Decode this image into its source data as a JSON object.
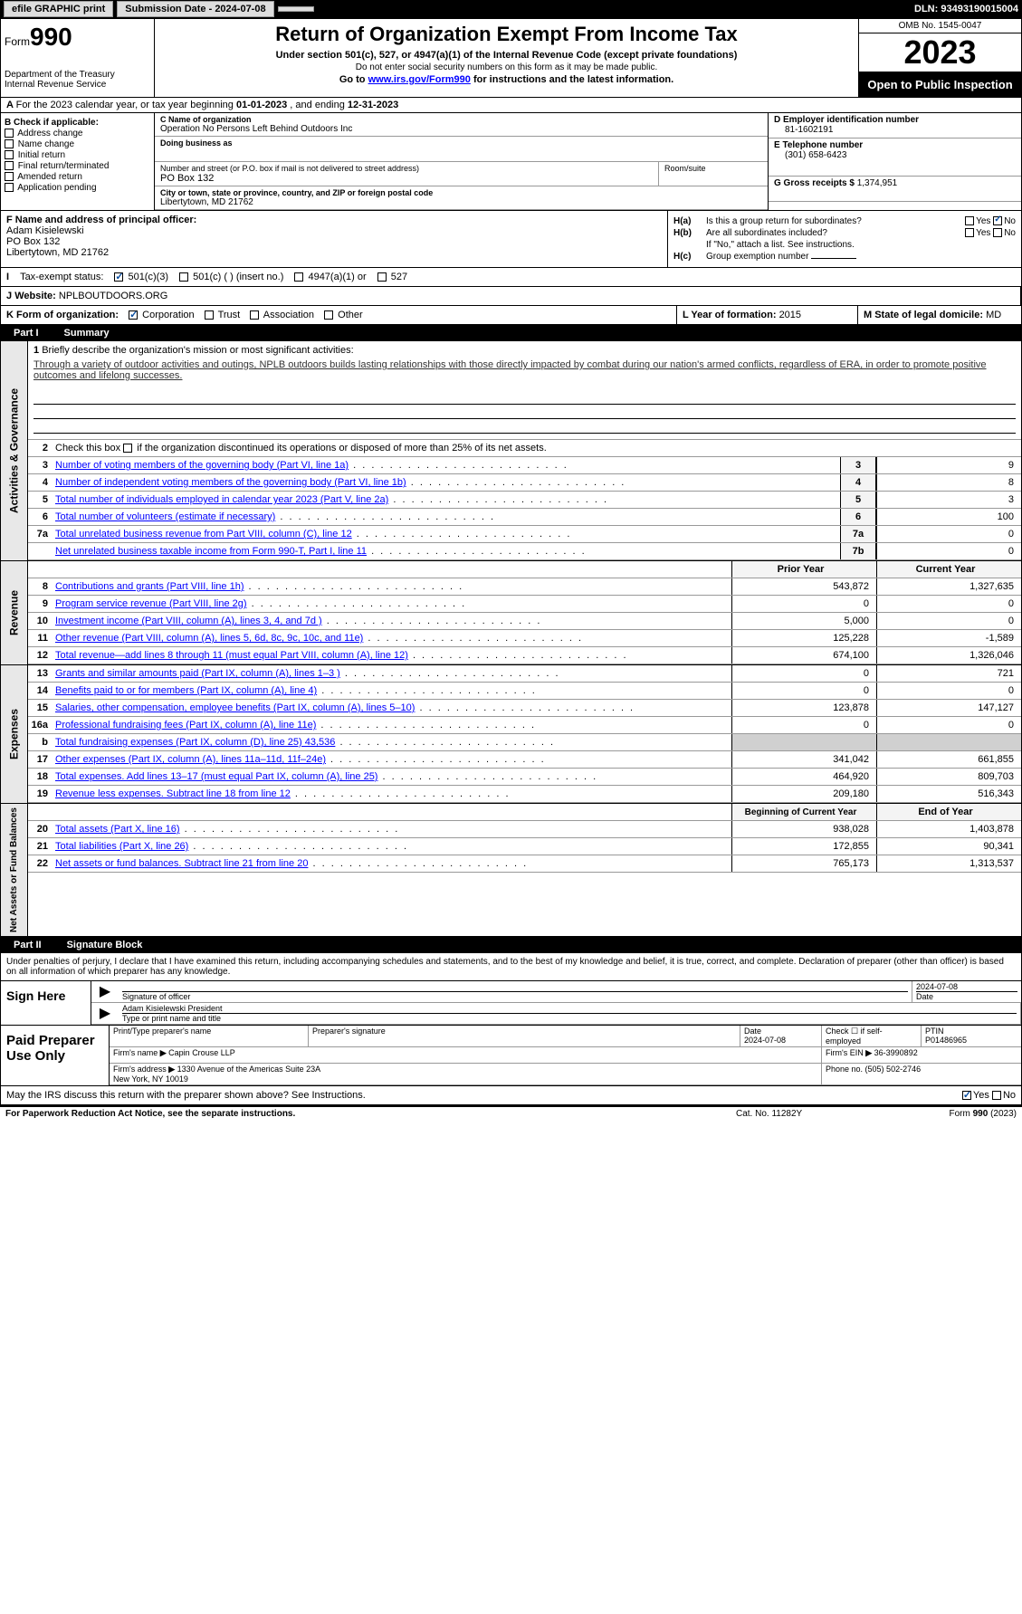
{
  "topbar": {
    "efile": "efile GRAPHIC print",
    "submission_label": "Submission Date - 2024-07-08",
    "dln": "DLN: 93493190015004"
  },
  "header": {
    "form_prefix": "Form",
    "form_num": "990",
    "dept": "Department of the Treasury",
    "irs": "Internal Revenue Service",
    "title": "Return of Organization Exempt From Income Tax",
    "subtitle": "Under section 501(c), 527, or 4947(a)(1) of the Internal Revenue Code (except private foundations)",
    "note": "Do not enter social security numbers on this form as it may be made public.",
    "goto": "Go to ",
    "goto_link": "www.irs.gov/Form990",
    "goto_tail": " for instructions and the latest information.",
    "omb": "OMB No. 1545-0047",
    "year": "2023",
    "opi": "Open to Public Inspection"
  },
  "row_a": {
    "text": "For the 2023 calendar year, or tax year beginning ",
    "begin": "01-01-2023",
    "mid": " , and ending ",
    "end": "12-31-2023"
  },
  "col_b": {
    "label": "B Check if applicable:",
    "items": [
      "Address change",
      "Name change",
      "Initial return",
      "Final return/terminated",
      "Amended return",
      "Application pending"
    ]
  },
  "col_c": {
    "name_label": "C Name of organization",
    "name": "Operation No Persons Left Behind Outdoors Inc",
    "dba_label": "Doing business as",
    "addr_label": "Number and street (or P.O. box if mail is not delivered to street address)",
    "addr": "PO Box 132",
    "room_label": "Room/suite",
    "city_label": "City or town, state or province, country, and ZIP or foreign postal code",
    "city": "Libertytown, MD  21762"
  },
  "col_d": {
    "ein_label": "D Employer identification number",
    "ein": "81-1602191",
    "tel_label": "E Telephone number",
    "tel": "(301) 658-6423",
    "gross_label": "G Gross receipts $ ",
    "gross": "1,374,951"
  },
  "row_f": {
    "label": "F  Name and address of principal officer:",
    "name": "Adam Kisielewski",
    "addr1": "PO Box 132",
    "addr2": "Libertytown, MD  21762"
  },
  "row_h": {
    "a_label": "H(a)",
    "a_text": "Is this a group return for subordinates?",
    "b_label": "H(b)",
    "b_text": "Are all subordinates included?",
    "b_note": "If \"No,\" attach a list. See instructions.",
    "c_label": "H(c)",
    "c_text": "Group exemption number ",
    "yes": "Yes",
    "no": "No"
  },
  "row_i": {
    "label": "I",
    "text": "Tax-exempt status:",
    "opts": [
      "501(c)(3)",
      "501(c) (  ) (insert no.)",
      "4947(a)(1) or",
      "527"
    ]
  },
  "row_j": {
    "label": "J",
    "text": "Website: ",
    "val": "NPLBOUTDOORS.ORG"
  },
  "row_k": {
    "label": "K Form of organization:",
    "opts": [
      "Corporation",
      "Trust",
      "Association",
      "Other"
    ]
  },
  "row_l": {
    "label": "L Year of formation: ",
    "val": "2015"
  },
  "row_m": {
    "label": "M State of legal domicile:",
    "val": "MD"
  },
  "part1": {
    "num": "Part I",
    "title": "Summary"
  },
  "vtabs": {
    "ag": "Activities & Governance",
    "rev": "Revenue",
    "exp": "Expenses",
    "na": "Net Assets or Fund Balances"
  },
  "mission": {
    "num": "1",
    "label": "Briefly describe the organization's mission or most significant activities:",
    "text": "Through a variety of outdoor activities and outings, NPLB outdoors builds lasting relationships with those directly impacted by combat during our nation's armed conflicts, regardless of ERA, in order to promote positive outcomes and lifelong successes."
  },
  "line2": {
    "num": "2",
    "text": "Check this box ",
    "tail": " if the organization discontinued its operations or disposed of more than 25% of its net assets."
  },
  "lines_gov": [
    {
      "num": "3",
      "desc": "Number of voting members of the governing body (Part VI, line 1a)",
      "box": "3",
      "val": "9"
    },
    {
      "num": "4",
      "desc": "Number of independent voting members of the governing body (Part VI, line 1b)",
      "box": "4",
      "val": "8"
    },
    {
      "num": "5",
      "desc": "Total number of individuals employed in calendar year 2023 (Part V, line 2a)",
      "box": "5",
      "val": "3"
    },
    {
      "num": "6",
      "desc": "Total number of volunteers (estimate if necessary)",
      "box": "6",
      "val": "100"
    },
    {
      "num": "7a",
      "desc": "Total unrelated business revenue from Part VIII, column (C), line 12",
      "box": "7a",
      "val": "0"
    },
    {
      "num": "",
      "desc": "Net unrelated business taxable income from Form 990-T, Part I, line 11",
      "box": "7b",
      "val": "0"
    }
  ],
  "hdr_rev": {
    "prior": "Prior Year",
    "current": "Current Year"
  },
  "lines_rev": [
    {
      "num": "8",
      "desc": "Contributions and grants (Part VIII, line 1h)",
      "prior": "543,872",
      "cur": "1,327,635"
    },
    {
      "num": "9",
      "desc": "Program service revenue (Part VIII, line 2g)",
      "prior": "0",
      "cur": "0"
    },
    {
      "num": "10",
      "desc": "Investment income (Part VIII, column (A), lines 3, 4, and 7d )",
      "prior": "5,000",
      "cur": "0"
    },
    {
      "num": "11",
      "desc": "Other revenue (Part VIII, column (A), lines 5, 6d, 8c, 9c, 10c, and 11e)",
      "prior": "125,228",
      "cur": "-1,589"
    },
    {
      "num": "12",
      "desc": "Total revenue—add lines 8 through 11 (must equal Part VIII, column (A), line 12)",
      "prior": "674,100",
      "cur": "1,326,046"
    }
  ],
  "lines_exp": [
    {
      "num": "13",
      "desc": "Grants and similar amounts paid (Part IX, column (A), lines 1–3 )",
      "prior": "0",
      "cur": "721"
    },
    {
      "num": "14",
      "desc": "Benefits paid to or for members (Part IX, column (A), line 4)",
      "prior": "0",
      "cur": "0"
    },
    {
      "num": "15",
      "desc": "Salaries, other compensation, employee benefits (Part IX, column (A), lines 5–10)",
      "prior": "123,878",
      "cur": "147,127"
    },
    {
      "num": "16a",
      "desc": "Professional fundraising fees (Part IX, column (A), line 11e)",
      "prior": "0",
      "cur": "0"
    },
    {
      "num": "b",
      "desc": "Total fundraising expenses (Part IX, column (D), line 25) 43,536",
      "prior": "",
      "cur": "",
      "shade": true
    },
    {
      "num": "17",
      "desc": "Other expenses (Part IX, column (A), lines 11a–11d, 11f–24e)",
      "prior": "341,042",
      "cur": "661,855"
    },
    {
      "num": "18",
      "desc": "Total expenses. Add lines 13–17 (must equal Part IX, column (A), line 25)",
      "prior": "464,920",
      "cur": "809,703"
    },
    {
      "num": "19",
      "desc": "Revenue less expenses. Subtract line 18 from line 12",
      "prior": "209,180",
      "cur": "516,343"
    }
  ],
  "hdr_na": {
    "prior": "Beginning of Current Year",
    "current": "End of Year"
  },
  "lines_na": [
    {
      "num": "20",
      "desc": "Total assets (Part X, line 16)",
      "prior": "938,028",
      "cur": "1,403,878"
    },
    {
      "num": "21",
      "desc": "Total liabilities (Part X, line 26)",
      "prior": "172,855",
      "cur": "90,341"
    },
    {
      "num": "22",
      "desc": "Net assets or fund balances. Subtract line 21 from line 20",
      "prior": "765,173",
      "cur": "1,313,537"
    }
  ],
  "part2": {
    "num": "Part II",
    "title": "Signature Block"
  },
  "sig_intro": "Under penalties of perjury, I declare that I have examined this return, including accompanying schedules and statements, and to the best of my knowledge and belief, it is true, correct, and complete. Declaration of preparer (other than officer) is based on all information of which preparer has any knowledge.",
  "sign_here": {
    "label": "Sign Here",
    "sig_label": "Signature of officer",
    "date_val": "2024-07-08",
    "date_label": "Date",
    "name": "Adam Kisielewski  President",
    "name_label": "Type or print name and title"
  },
  "prep": {
    "label": "Paid Preparer Use Only",
    "h1": "Print/Type preparer's name",
    "h2": "Preparer's signature",
    "h3": "Date",
    "h3v": "2024-07-08",
    "h4": "Check ☐ if self-employed",
    "h5": "PTIN",
    "h5v": "P01486965",
    "firm_label": "Firm's name ",
    "firm": "Capin Crouse LLP",
    "ein_label": "Firm's EIN ",
    "ein": "36-3990892",
    "addr_label": "Firm's address ",
    "addr": "1330 Avenue of the Americas Suite 23A\nNew York, NY  10019",
    "phone_label": "Phone no. ",
    "phone": "(505) 502-2746"
  },
  "discuss": {
    "text": "May the IRS discuss this return with the preparer shown above? See Instructions.",
    "yes": "Yes",
    "no": "No"
  },
  "footer": {
    "left": "For Paperwork Reduction Act Notice, see the separate instructions.",
    "mid": "Cat. No. 11282Y",
    "right": "Form 990 (2023)"
  }
}
